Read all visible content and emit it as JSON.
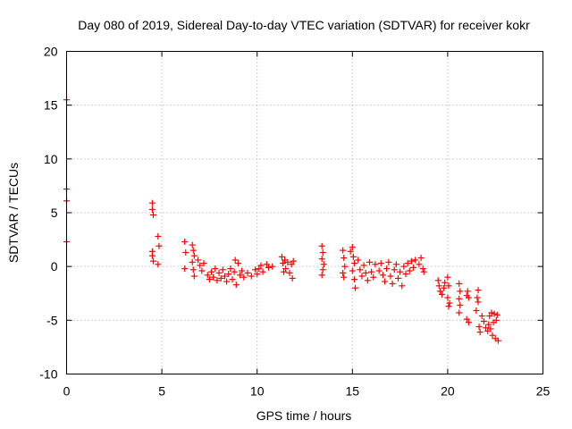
{
  "chart_data": {
    "type": "scatter",
    "title": "Day 080 of 2019, Sidereal Day-to-day VTEC variation (SDTVAR) for receiver kokr",
    "xlabel": "GPS time / hours",
    "ylabel": "SDTVAR / TECUs",
    "xlim": [
      0,
      25
    ],
    "ylim": [
      -10,
      20
    ],
    "xticks": [
      0,
      5,
      10,
      15,
      20,
      25
    ],
    "xtick_labels": [
      "0",
      "5",
      "10",
      "15",
      "20",
      "25"
    ],
    "yticks": [
      -10,
      -5,
      0,
      5,
      10,
      15,
      20
    ],
    "ytick_labels": [
      "-10",
      "-5",
      "0",
      "5",
      "10",
      "15",
      "20"
    ],
    "grid": true,
    "legend": "none",
    "marker": "+",
    "marker_color": "#ff0000",
    "series": [
      {
        "name": "SDTVAR",
        "points": [
          [
            0.0,
            15.5
          ],
          [
            0.0,
            7.2
          ],
          [
            0.0,
            6.1
          ],
          [
            0.0,
            2.3
          ],
          [
            4.5,
            5.9
          ],
          [
            4.5,
            5.3
          ],
          [
            4.55,
            4.8
          ],
          [
            4.5,
            1.4
          ],
          [
            4.5,
            1.0
          ],
          [
            4.55,
            0.5
          ],
          [
            4.8,
            2.8
          ],
          [
            4.85,
            1.9
          ],
          [
            4.8,
            0.2
          ],
          [
            6.2,
            2.3
          ],
          [
            6.25,
            1.3
          ],
          [
            6.2,
            -0.2
          ],
          [
            6.6,
            2.0
          ],
          [
            6.65,
            1.5
          ],
          [
            6.7,
            1.0
          ],
          [
            6.6,
            0.4
          ],
          [
            6.65,
            -0.3
          ],
          [
            6.7,
            -0.9
          ],
          [
            6.9,
            0.6
          ],
          [
            7.0,
            0.1
          ],
          [
            7.1,
            -0.4
          ],
          [
            7.2,
            0.3
          ],
          [
            7.4,
            -0.8
          ],
          [
            7.5,
            -1.2
          ],
          [
            7.6,
            -0.5
          ],
          [
            7.7,
            -1.0
          ],
          [
            7.8,
            -0.2
          ],
          [
            7.9,
            -1.3
          ],
          [
            8.0,
            -0.6
          ],
          [
            8.1,
            -1.1
          ],
          [
            8.2,
            -0.3
          ],
          [
            8.3,
            -0.9
          ],
          [
            8.4,
            -1.4
          ],
          [
            8.5,
            -0.7
          ],
          [
            8.6,
            -0.2
          ],
          [
            8.7,
            -1.2
          ],
          [
            8.8,
            -0.5
          ],
          [
            8.85,
            0.6
          ],
          [
            8.9,
            -1.7
          ],
          [
            9.0,
            0.3
          ],
          [
            9.1,
            -0.8
          ],
          [
            9.2,
            -0.4
          ],
          [
            9.3,
            -1.0
          ],
          [
            9.5,
            -0.6
          ],
          [
            9.7,
            -0.9
          ],
          [
            9.9,
            -0.3
          ],
          [
            10.0,
            -0.7
          ],
          [
            10.1,
            -0.2
          ],
          [
            10.2,
            0.1
          ],
          [
            10.3,
            -0.5
          ],
          [
            10.5,
            0.2
          ],
          [
            10.6,
            -0.1
          ],
          [
            10.8,
            0.0
          ],
          [
            11.3,
            0.9
          ],
          [
            11.35,
            0.3
          ],
          [
            11.4,
            -0.5
          ],
          [
            11.45,
            0.6
          ],
          [
            11.5,
            -0.2
          ],
          [
            11.6,
            0.4
          ],
          [
            11.7,
            -0.6
          ],
          [
            11.8,
            0.2
          ],
          [
            11.85,
            -1.1
          ],
          [
            11.9,
            0.5
          ],
          [
            13.4,
            1.9
          ],
          [
            13.45,
            1.3
          ],
          [
            13.4,
            0.7
          ],
          [
            13.5,
            0.2
          ],
          [
            13.45,
            -0.3
          ],
          [
            13.4,
            -0.8
          ],
          [
            14.5,
            1.5
          ],
          [
            14.55,
            0.8
          ],
          [
            14.6,
            0.0
          ],
          [
            14.5,
            -0.6
          ],
          [
            14.55,
            -1.0
          ],
          [
            14.9,
            1.4
          ],
          [
            15.0,
            1.8
          ],
          [
            15.05,
            0.9
          ],
          [
            15.1,
            0.3
          ],
          [
            15.0,
            -0.4
          ],
          [
            15.1,
            -1.2
          ],
          [
            15.15,
            -2.0
          ],
          [
            15.3,
            0.6
          ],
          [
            15.4,
            -0.3
          ],
          [
            15.5,
            -0.9
          ],
          [
            15.6,
            0.1
          ],
          [
            15.7,
            -0.6
          ],
          [
            15.8,
            -1.3
          ],
          [
            15.9,
            0.4
          ],
          [
            16.0,
            -0.5
          ],
          [
            16.1,
            -1.0
          ],
          [
            16.2,
            0.2
          ],
          [
            16.4,
            -0.4
          ],
          [
            16.5,
            0.3
          ],
          [
            16.6,
            -0.8
          ],
          [
            16.7,
            -1.4
          ],
          [
            16.8,
            -0.2
          ],
          [
            16.9,
            0.4
          ],
          [
            17.0,
            -0.9
          ],
          [
            17.1,
            -1.6
          ],
          [
            17.2,
            -0.3
          ],
          [
            17.3,
            0.2
          ],
          [
            17.4,
            -1.1
          ],
          [
            17.5,
            -0.5
          ],
          [
            17.6,
            -1.8
          ],
          [
            17.7,
            0.0
          ],
          [
            17.8,
            -0.7
          ],
          [
            17.9,
            0.3
          ],
          [
            18.0,
            -0.4
          ],
          [
            18.1,
            0.5
          ],
          [
            18.2,
            -0.1
          ],
          [
            18.3,
            0.6
          ],
          [
            18.5,
            0.2
          ],
          [
            18.6,
            0.8
          ],
          [
            18.7,
            -0.2
          ],
          [
            18.75,
            -0.5
          ],
          [
            19.5,
            -1.3
          ],
          [
            19.55,
            -1.8
          ],
          [
            19.6,
            -2.3
          ],
          [
            19.7,
            -2.6
          ],
          [
            19.8,
            -2.0
          ],
          [
            19.85,
            -1.5
          ],
          [
            20.0,
            -1.0
          ],
          [
            20.05,
            -1.8
          ],
          [
            20.0,
            -2.9
          ],
          [
            20.1,
            -3.4
          ],
          [
            20.05,
            -3.7
          ],
          [
            20.6,
            -1.6
          ],
          [
            20.65,
            -2.3
          ],
          [
            20.6,
            -3.0
          ],
          [
            20.65,
            -3.6
          ],
          [
            20.6,
            -4.3
          ],
          [
            21.0,
            -2.7
          ],
          [
            21.05,
            -2.3
          ],
          [
            21.1,
            -2.9
          ],
          [
            21.0,
            -4.9
          ],
          [
            21.1,
            -5.2
          ],
          [
            21.5,
            -4.1
          ],
          [
            21.6,
            -2.2
          ],
          [
            21.55,
            -2.9
          ],
          [
            21.6,
            -3.3
          ],
          [
            21.65,
            -5.6
          ],
          [
            21.7,
            -6.1
          ],
          [
            21.8,
            -4.6
          ],
          [
            21.9,
            -5.1
          ],
          [
            22.0,
            -5.7
          ],
          [
            22.1,
            -6.0
          ],
          [
            22.15,
            -5.4
          ],
          [
            22.2,
            -4.6
          ],
          [
            22.25,
            -5.8
          ],
          [
            22.3,
            -4.3
          ],
          [
            22.35,
            -6.4
          ],
          [
            22.4,
            -5.2
          ],
          [
            22.45,
            -4.4
          ],
          [
            22.5,
            -6.7
          ],
          [
            22.55,
            -5.0
          ],
          [
            22.6,
            -4.5
          ],
          [
            22.65,
            -6.9
          ]
        ]
      }
    ]
  }
}
